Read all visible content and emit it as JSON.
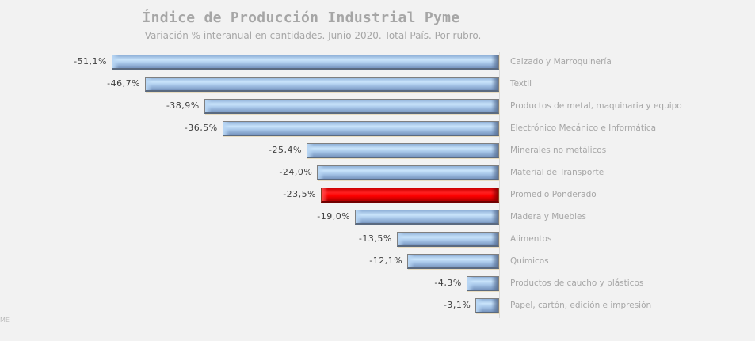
{
  "header": {
    "title": "Índice de Producción Industrial Pyme",
    "subtitle": "Variación % interanual en cantidades. Junio 2020. Total País. Por rubro."
  },
  "footer": {
    "corner_mark": "ME"
  },
  "colors": {
    "default_bar": "#a9c8ea",
    "highlight_bar": "#ff0000",
    "text_muted": "#a6a6a6",
    "value_text": "#404040",
    "background": "#f2f2f2"
  },
  "chart_data": {
    "type": "bar",
    "orientation": "horizontal",
    "title": "Índice de Producción Industrial Pyme",
    "subtitle": "Variación % interanual en cantidades. Junio 2020. Total País. Por rubro.",
    "xlabel": "",
    "ylabel": "",
    "grid": false,
    "legend": null,
    "xlim": [
      -51.1,
      0
    ],
    "categories": [
      "Calzado y Marroquinería",
      "Textil",
      "Productos de metal, maquinaria y equipo",
      "Electrónico Mecánico e Informática",
      "Minerales no metálicos",
      "Material de Transporte",
      "Promedio Ponderado",
      "Madera y Muebles",
      "Alimentos",
      "Químicos",
      "Productos de caucho y plásticos",
      "Papel, cartón, edición e impresión"
    ],
    "values": [
      -51.1,
      -46.7,
      -38.9,
      -36.5,
      -25.4,
      -24.0,
      -23.5,
      -19.0,
      -13.5,
      -12.1,
      -4.3,
      -3.1
    ],
    "labels": [
      "-51,1%",
      "-46,7%",
      "-38,9%",
      "-36,5%",
      "-25,4%",
      "-24,0%",
      "-23,5%",
      "-19,0%",
      "-13,5%",
      "-12,1%",
      "-4,3%",
      "-3,1%"
    ],
    "highlight": [
      "Promedio Ponderado"
    ]
  }
}
